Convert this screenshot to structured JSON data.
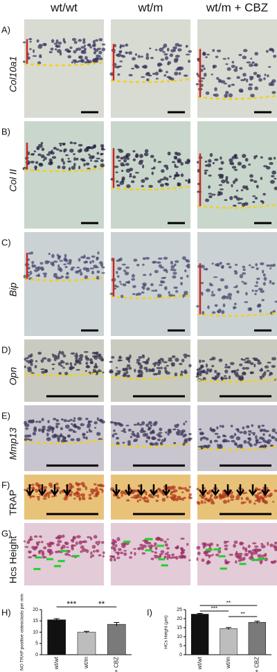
{
  "columns": [
    "wt/wt",
    "wt/m",
    "wt/m + CBZ"
  ],
  "rows": [
    {
      "letter": "A)",
      "label": "Col10a1",
      "italic": true
    },
    {
      "letter": "B)",
      "label": "Col II",
      "italic": true
    },
    {
      "letter": "C)",
      "label": "Bip",
      "italic": true
    },
    {
      "letter": "D)",
      "label": "Opn",
      "italic": true
    },
    {
      "letter": "E)",
      "label": "Mmp13",
      "italic": true
    },
    {
      "letter": "F)",
      "label": "TRAP",
      "italic": false
    },
    {
      "letter": "G)",
      "label": "Hcs Height",
      "italic": false
    }
  ],
  "chart_data": [
    {
      "type": "bar",
      "letter": "H)",
      "ylabel": "NO TRAP positive osteoclasts per mm",
      "categories": [
        "wt/wt",
        "wt/m",
        "wt/m + CBZ"
      ],
      "values": [
        15.5,
        10,
        13.5
      ],
      "errors": [
        0.5,
        0.4,
        0.8
      ],
      "colors": [
        "#111111",
        "#bdbdbd",
        "#7a7a7a"
      ],
      "ylim": [
        0,
        20
      ],
      "yticks": [
        0,
        5,
        10,
        15,
        20
      ],
      "annotations": [
        {
          "text": "***",
          "between": [
            "wt/wt",
            "wt/m"
          ]
        },
        {
          "text": "**",
          "between": [
            "wt/m",
            "wt/m + CBZ"
          ]
        }
      ]
    },
    {
      "type": "bar",
      "letter": "I)",
      "ylabel": "HCs Height (μm)",
      "categories": [
        "wt/wt",
        "wt/m",
        "wt/m + CBZ"
      ],
      "values": [
        22.5,
        14.5,
        18
      ],
      "errors": [
        0.4,
        0.6,
        0.6
      ],
      "colors": [
        "#111111",
        "#bdbdbd",
        "#7a7a7a"
      ],
      "ylim": [
        0,
        25
      ],
      "yticks": [
        0,
        5,
        10,
        15,
        20,
        25
      ],
      "annotations": [
        {
          "text": "**",
          "between": [
            "wt/wt",
            "wt/m + CBZ"
          ]
        },
        {
          "text": "***",
          "between": [
            "wt/wt",
            "wt/m"
          ]
        },
        {
          "text": "**",
          "between": [
            "wt/m",
            "wt/m + CBZ"
          ]
        }
      ]
    }
  ]
}
